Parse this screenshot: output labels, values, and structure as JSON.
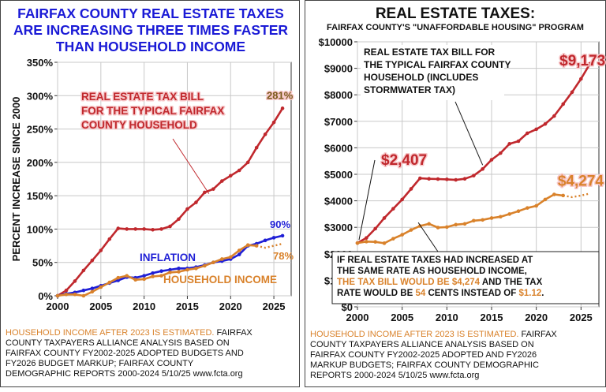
{
  "chart_data": [
    {
      "type": "line",
      "title_lines": [
        "FAIRFAX COUNTY REAL ESTATE TAXES",
        "ARE INCREASING THREE TIMES FASTER",
        "THAN HOUSEHOLD INCOME"
      ],
      "ylabel": "PERCENT INCREASE SINCE 2000",
      "xlabel": "",
      "xlim": [
        2000,
        2027
      ],
      "ylim": [
        0,
        350
      ],
      "xticks": [
        2000,
        2005,
        2010,
        2015,
        2020,
        2025
      ],
      "yticks": [
        0,
        50,
        100,
        150,
        200,
        250,
        300,
        350
      ],
      "ytick_labels": [
        "0%",
        "50%",
        "100%",
        "150%",
        "200%",
        "250%",
        "300%",
        "350%"
      ],
      "grid": true,
      "series": [
        {
          "name": "REAL ESTATE TAX BILL FOR THE TYPICAL FAIRFAX COUNTY HOUSEHOLD",
          "color": "#c0282d",
          "x": [
            2000,
            2001,
            2002,
            2003,
            2004,
            2005,
            2006,
            2007,
            2008,
            2009,
            2010,
            2011,
            2012,
            2013,
            2014,
            2015,
            2016,
            2017,
            2018,
            2019,
            2020,
            2021,
            2022,
            2023,
            2024,
            2025,
            2026
          ],
          "y": [
            0,
            8,
            22,
            38,
            53,
            68,
            85,
            101,
            100,
            100,
            100,
            99,
            100,
            104,
            115,
            130,
            140,
            155,
            160,
            172,
            180,
            188,
            200,
            222,
            242,
            260,
            281
          ]
        },
        {
          "name": "INFLATION",
          "color": "#1f1fd6",
          "x": [
            2000,
            2001,
            2002,
            2003,
            2004,
            2005,
            2006,
            2007,
            2008,
            2009,
            2010,
            2011,
            2012,
            2013,
            2014,
            2015,
            2016,
            2017,
            2018,
            2019,
            2020,
            2021,
            2022,
            2023,
            2024,
            2025,
            2026
          ],
          "y": [
            0,
            3,
            5,
            8,
            11,
            15,
            19,
            23,
            28,
            27,
            30,
            34,
            37,
            39,
            41,
            41,
            43,
            46,
            50,
            52,
            55,
            62,
            75,
            78,
            83,
            87,
            90
          ]
        },
        {
          "name": "HOUSEHOLD INCOME",
          "color": "#d9822b",
          "x": [
            2000,
            2001,
            2002,
            2003,
            2004,
            2005,
            2006,
            2007,
            2008,
            2009,
            2010,
            2011,
            2012,
            2013,
            2014,
            2015,
            2016,
            2017,
            2018,
            2019,
            2020,
            2021,
            2022,
            2023
          ],
          "y": [
            0,
            2,
            2,
            0,
            6,
            13,
            20,
            27,
            30,
            24,
            25,
            29,
            30,
            35,
            36,
            39,
            41,
            45,
            50,
            55,
            58,
            68,
            76,
            75
          ],
          "estimated": {
            "x": [
              2023,
              2024,
              2025,
              2026
            ],
            "y": [
              75,
              72,
              75,
              78
            ]
          }
        }
      ],
      "annotations": {
        "tax_label_lines": [
          "REAL ESTATE TAX BILL",
          "FOR THE TYPICAL FAIRFAX",
          "COUNTY HOUSEHOLD"
        ],
        "tax_end": "281%",
        "inflation_label": "INFLATION",
        "inflation_end": "90%",
        "income_label": "HOUSEHOLD INCOME",
        "income_end": "78%"
      },
      "footnote": {
        "highlight": "HOUSEHOLD INCOME AFTER 2023 IS ESTIMATED.",
        "first_rest": " FAIRFAX",
        "lines": [
          "COUNTY TAXPAYERS ALLIANCE ANALYSIS BASED ON",
          "FAIRFAX COUNTY FY2002-2025  ADOPTED BUDGETS AND",
          "FY2026  BUDGET MARKUP;  FAIRFAX COUNTY",
          "DEMOGRAPHIC REPORTS 2000-2024    5/10/25 www.fcta.org"
        ]
      }
    },
    {
      "type": "line",
      "title": "REAL ESTATE TAXES:",
      "subtitle": "FAIRFAX COUNTY'S \"UNAFFORDABLE HOUSING\" PROGRAM",
      "xlabel": "",
      "ylabel": "",
      "xlim": [
        2000,
        2027
      ],
      "ylim": [
        0,
        10000
      ],
      "xticks": [
        2000,
        2005,
        2010,
        2015,
        2020,
        2025
      ],
      "yticks": [
        0,
        1000,
        2000,
        3000,
        4000,
        5000,
        6000,
        7000,
        8000,
        9000,
        10000
      ],
      "ytick_labels": [
        "$0",
        "$1000",
        "$2000",
        "$3000",
        "$4000",
        "$5000",
        "$6000",
        "$7000",
        "$8000",
        "$9000",
        "$10000"
      ],
      "grid": true,
      "series": [
        {
          "name": "REAL ESTATE TAX BILL FOR THE TYPICAL FAIRFAX COUNTY HOUSEHOLD (INCLUDES STORMWATER TAX)",
          "color": "#c0282d",
          "x": [
            2000,
            2001,
            2002,
            2003,
            2004,
            2005,
            2006,
            2007,
            2008,
            2009,
            2010,
            2011,
            2012,
            2013,
            2014,
            2015,
            2016,
            2017,
            2018,
            2019,
            2020,
            2021,
            2022,
            2023,
            2024,
            2025,
            2026
          ],
          "y": [
            2407,
            2600,
            2950,
            3350,
            3700,
            4050,
            4450,
            4850,
            4830,
            4820,
            4810,
            4790,
            4830,
            4950,
            5200,
            5550,
            5800,
            6150,
            6250,
            6550,
            6700,
            6900,
            7200,
            7650,
            8100,
            8600,
            9173
          ]
        },
        {
          "name": "REAL ESTATE TAXES INCREASED AT THE SAME RATE AS HOUSEHOLD INCOME",
          "color": "#d9822b",
          "x": [
            2000,
            2001,
            2002,
            2003,
            2004,
            2005,
            2006,
            2007,
            2008,
            2009,
            2010,
            2011,
            2012,
            2013,
            2014,
            2015,
            2016,
            2017,
            2018,
            2019,
            2020,
            2021,
            2022,
            2023
          ],
          "y": [
            2407,
            2460,
            2450,
            2400,
            2570,
            2720,
            2900,
            3050,
            3130,
            2990,
            3010,
            3100,
            3130,
            3250,
            3280,
            3350,
            3400,
            3500,
            3610,
            3730,
            3810,
            4050,
            4240,
            4200
          ],
          "estimated": {
            "x": [
              2023,
              2024,
              2025,
              2026
            ],
            "y": [
              4200,
              4140,
              4200,
              4274
            ]
          }
        }
      ],
      "annotations": {
        "tax_label_lines": [
          "REAL ESTATE TAX BILL FOR",
          "THE TYPICAL FAIRFAX COUNTY",
          "HOUSEHOLD  (INCLUDES",
          "STORMWATER TAX)"
        ],
        "start": "$2,407",
        "tax_end": "$9,173",
        "income_end": "$4,274",
        "box_l1": "IF REAL ESTATE TAXES HAD INCREASED AT",
        "box_l2": "THE SAME RATE AS HOUSEHOLD INCOME,",
        "box_l3_hl": "THE  TAX BILL WOULD BE $4,274",
        "box_l3_rest": " AND THE TAX",
        "box_l4_a": "RATE WOULD BE ",
        "box_l4_b": "54",
        "box_l4_c": " CENTS INSTEAD OF ",
        "box_l4_d": "$1.12",
        "box_l4_e": "."
      },
      "footnote": {
        "highlight": "HOUSEHOLD INCOME AFTER 2023 IS ESTIMATED.",
        "first_rest": "  FAIRFAX",
        "lines": [
          "COUNTY TAXPAYERS ALLIANCE ANALYSIS BASED ON",
          "FAIRFAX COUNTY FY2002-2025  ADOPTED AND FY2026",
          "MARKUP BUDGETS;  FAIRFAX COUNTY DEMOGRAPHIC",
          "REPORTS 2000-2024    5/10/25  www.fcta.org"
        ]
      }
    }
  ]
}
